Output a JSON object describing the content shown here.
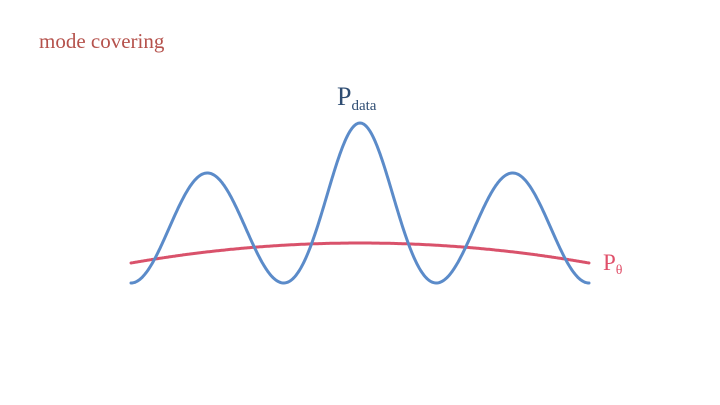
{
  "title": "mode covering",
  "data_label": {
    "main": "P",
    "sub": "data"
  },
  "model_label": {
    "main": "P",
    "sub": "θ"
  },
  "colors": {
    "title": "#b5524c",
    "data_curve": "#5b8bc9",
    "data_label": "#2f4d73",
    "model_curve": "#d9526b",
    "model_label": "#e0506a"
  }
}
